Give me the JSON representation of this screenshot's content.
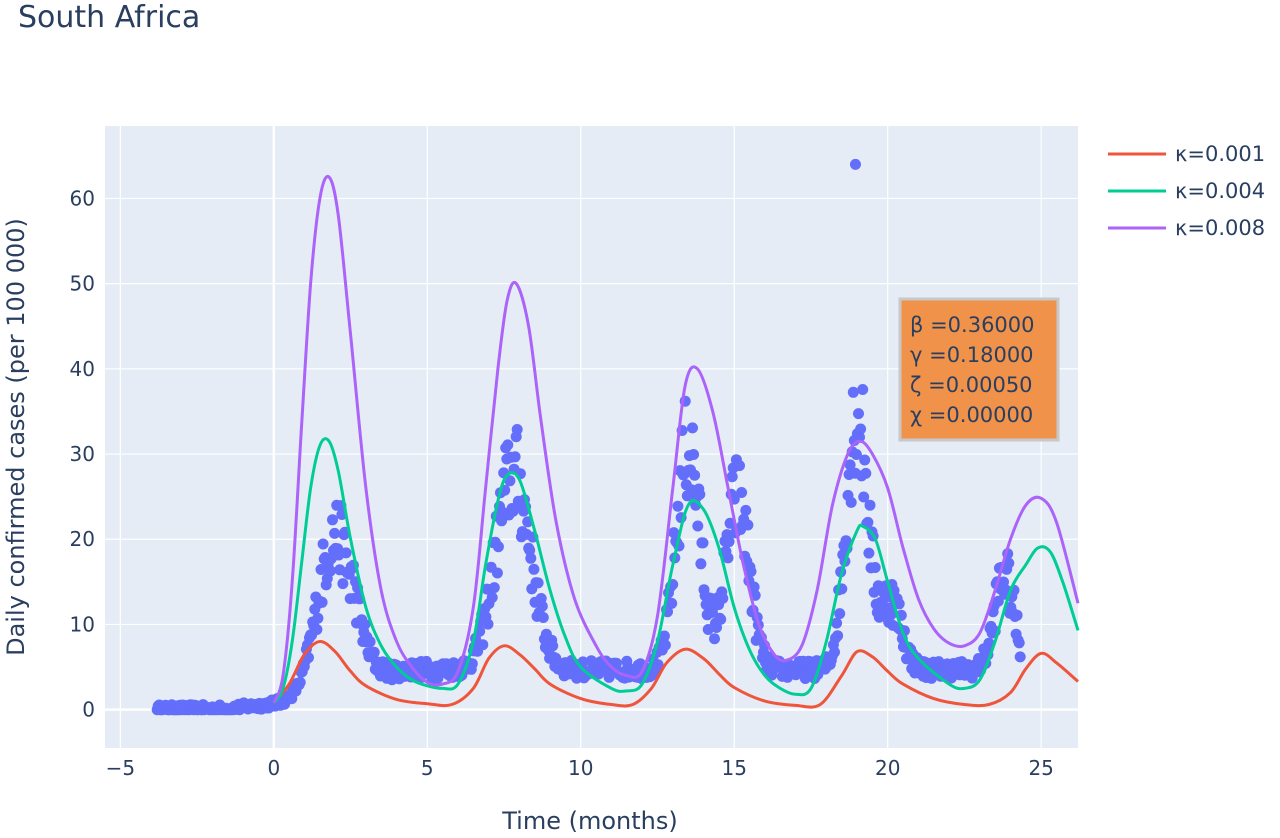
{
  "chart_data": {
    "type": "line",
    "title": "South Africa",
    "xlabel": "Time (months)",
    "ylabel": "Daily confirmed cases (per 100 000)",
    "xlim": [
      -5.5,
      26.2
    ],
    "ylim": [
      -4.5,
      68.5
    ],
    "xticks": [
      -5,
      0,
      5,
      10,
      15,
      20,
      25
    ],
    "yticks": [
      0,
      10,
      20,
      30,
      40,
      50,
      60
    ],
    "xtick_labels": [
      "−5",
      "0",
      "5",
      "10",
      "15",
      "20",
      "25"
    ],
    "ytick_labels": [
      "0",
      "10",
      "20",
      "30",
      "40",
      "50",
      "60"
    ],
    "grid": true,
    "legend_position": "top-right, outside plot",
    "colors": {
      "plot_bg": "#E5ECF6",
      "grid": "#FFFFFF",
      "observed": "#636EFA",
      "annotation_bg": "#F0924A",
      "annotation_border": "#C8C8C8"
    },
    "series": [
      {
        "name": "κ=0.001",
        "color": "#EF553B",
        "x": [
          0,
          0.5,
          1.0,
          1.5,
          2.0,
          2.5,
          3.0,
          4.0,
          5.0,
          5.8,
          6.5,
          7.0,
          7.5,
          8.0,
          8.5,
          9.0,
          10.0,
          11.0,
          11.7,
          12.3,
          12.8,
          13.4,
          14.0,
          14.5,
          15.0,
          16.0,
          17.0,
          17.8,
          18.5,
          19.0,
          19.5,
          20.0,
          20.5,
          21.5,
          22.5,
          23.3,
          24.0,
          24.5,
          25.0,
          25.5,
          26.2
        ],
        "y": [
          0.8,
          3.0,
          6.5,
          8.0,
          6.8,
          4.5,
          2.8,
          1.2,
          0.7,
          0.6,
          2.5,
          6.0,
          7.5,
          6.5,
          4.8,
          3.0,
          1.3,
          0.6,
          0.6,
          2.5,
          5.5,
          7.1,
          6.0,
          4.2,
          2.6,
          1.0,
          0.5,
          0.6,
          4.0,
          6.8,
          6.2,
          4.5,
          3.0,
          1.3,
          0.6,
          0.6,
          2.0,
          4.8,
          6.6,
          5.5,
          3.3
        ]
      },
      {
        "name": "κ=0.004",
        "color": "#00CC96",
        "x": [
          0,
          0.3,
          0.6,
          0.9,
          1.2,
          1.5,
          1.8,
          2.1,
          2.5,
          3.0,
          3.5,
          4.0,
          4.5,
          5.0,
          5.5,
          6.0,
          6.5,
          6.9,
          7.3,
          7.6,
          8.0,
          8.5,
          9.0,
          9.5,
          10.0,
          11.0,
          11.5,
          12.0,
          12.5,
          13.0,
          13.5,
          14.0,
          14.5,
          15.0,
          15.5,
          16.0,
          16.5,
          17.0,
          17.5,
          18.0,
          18.5,
          19.0,
          19.2,
          19.6,
          20.0,
          20.5,
          21.0,
          22.0,
          22.5,
          23.0,
          23.5,
          24.0,
          24.5,
          24.9,
          25.3,
          25.7,
          26.2
        ],
        "y": [
          0.8,
          2.5,
          8.0,
          17.0,
          26.0,
          31.0,
          31.5,
          28.0,
          20.0,
          12.0,
          7.5,
          5.0,
          3.5,
          2.8,
          2.5,
          3.0,
          8.0,
          17.0,
          24.5,
          27.5,
          27.0,
          21.0,
          14.0,
          8.5,
          5.0,
          2.5,
          2.2,
          3.0,
          8.0,
          17.0,
          24.0,
          23.5,
          19.0,
          12.0,
          7.0,
          4.0,
          2.5,
          1.8,
          2.5,
          8.0,
          16.0,
          21.0,
          21.5,
          20.0,
          15.0,
          9.0,
          6.0,
          3.0,
          2.5,
          3.5,
          8.0,
          14.0,
          17.0,
          19.0,
          18.5,
          15.0,
          9.3
        ]
      },
      {
        "name": "κ=0.008",
        "color": "#AB63FA",
        "x": [
          0,
          0.3,
          0.6,
          0.9,
          1.2,
          1.5,
          1.8,
          2.1,
          2.5,
          3.0,
          3.5,
          4.0,
          4.5,
          5.0,
          5.5,
          6.0,
          6.5,
          6.9,
          7.3,
          7.6,
          7.9,
          8.3,
          8.7,
          9.2,
          9.8,
          10.5,
          11.0,
          11.5,
          12.0,
          12.5,
          13.0,
          13.4,
          13.8,
          14.3,
          14.8,
          15.3,
          15.8,
          16.3,
          16.7,
          17.2,
          17.7,
          18.2,
          18.7,
          19.1,
          19.5,
          20.0,
          20.5,
          21.0,
          21.5,
          22.0,
          22.5,
          23.0,
          23.5,
          24.0,
          24.5,
          25.0,
          25.5,
          26.2
        ],
        "y": [
          0.8,
          4.0,
          15.0,
          33.0,
          50.0,
          60.0,
          62.5,
          58.0,
          44.0,
          26.0,
          14.0,
          8.0,
          5.0,
          3.2,
          3.0,
          4.5,
          12.0,
          26.0,
          40.0,
          48.0,
          50.0,
          45.0,
          34.0,
          22.0,
          13.0,
          7.5,
          5.0,
          4.0,
          4.5,
          11.0,
          26.0,
          38.0,
          40.0,
          35.0,
          26.0,
          17.0,
          10.0,
          6.5,
          5.8,
          7.5,
          14.0,
          24.0,
          30.0,
          31.5,
          30.0,
          26.0,
          19.0,
          13.0,
          9.5,
          7.8,
          7.5,
          9.0,
          14.0,
          20.0,
          24.0,
          24.8,
          22.0,
          12.5
        ]
      }
    ],
    "annotation": {
      "lines": [
        "β =0.36000",
        "γ =0.18000",
        "ζ =0.00050",
        "χ =0.00000"
      ]
    }
  }
}
